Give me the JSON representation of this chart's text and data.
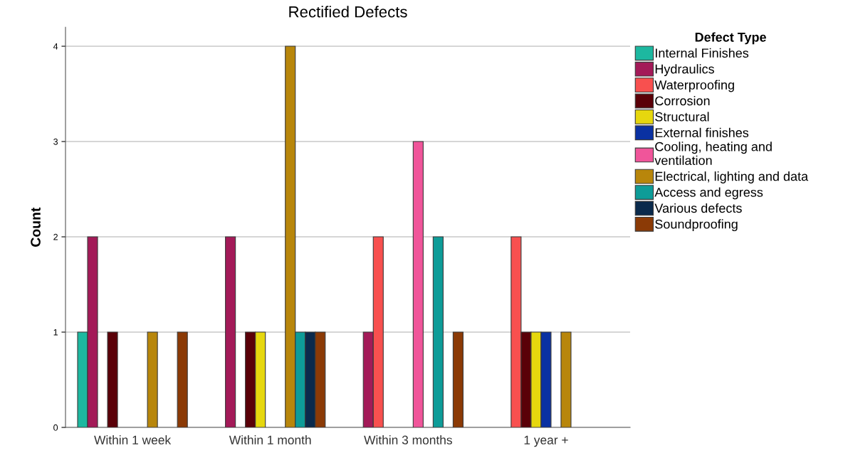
{
  "chart_data": {
    "type": "bar",
    "title": "Rectified Defects",
    "ylabel": "Count",
    "legend_title": "Defect Type",
    "categories": [
      "Within 1 week",
      "Within 1 month",
      "Within 3 months",
      "1 year +"
    ],
    "series": [
      {
        "name": "Internal Finishes",
        "color": "#1db8a0",
        "values": [
          1,
          null,
          null,
          null
        ]
      },
      {
        "name": "Hydraulics",
        "color": "#a31a58",
        "values": [
          2,
          2,
          1,
          null
        ]
      },
      {
        "name": "Waterproofing",
        "color": "#f8504f",
        "values": [
          null,
          null,
          2,
          2
        ]
      },
      {
        "name": "Corrosion",
        "color": "#5a0008",
        "values": [
          1,
          1,
          null,
          1
        ]
      },
      {
        "name": "Structural",
        "color": "#e6d70e",
        "values": [
          null,
          1,
          null,
          1
        ]
      },
      {
        "name": "External finishes",
        "color": "#0a31a2",
        "values": [
          null,
          null,
          null,
          1
        ]
      },
      {
        "name": "Cooling, heating and\nventilation",
        "color": "#f0559a",
        "values": [
          null,
          null,
          3,
          null
        ]
      },
      {
        "name": "Electrical, lighting and data",
        "color": "#b8860b",
        "values": [
          1,
          4,
          null,
          1
        ]
      },
      {
        "name": "Access and egress",
        "color": "#0e9c98",
        "values": [
          null,
          1,
          2,
          null
        ]
      },
      {
        "name": "Various defects",
        "color": "#0a2a4c",
        "values": [
          null,
          1,
          null,
          null
        ]
      },
      {
        "name": "Soundproofing",
        "color": "#8b3a06",
        "values": [
          1,
          1,
          1,
          null
        ]
      }
    ],
    "ylim": [
      0,
      4.2
    ],
    "yticks": [
      0,
      1,
      2,
      3,
      4
    ],
    "grid": "y",
    "legend": "right"
  }
}
